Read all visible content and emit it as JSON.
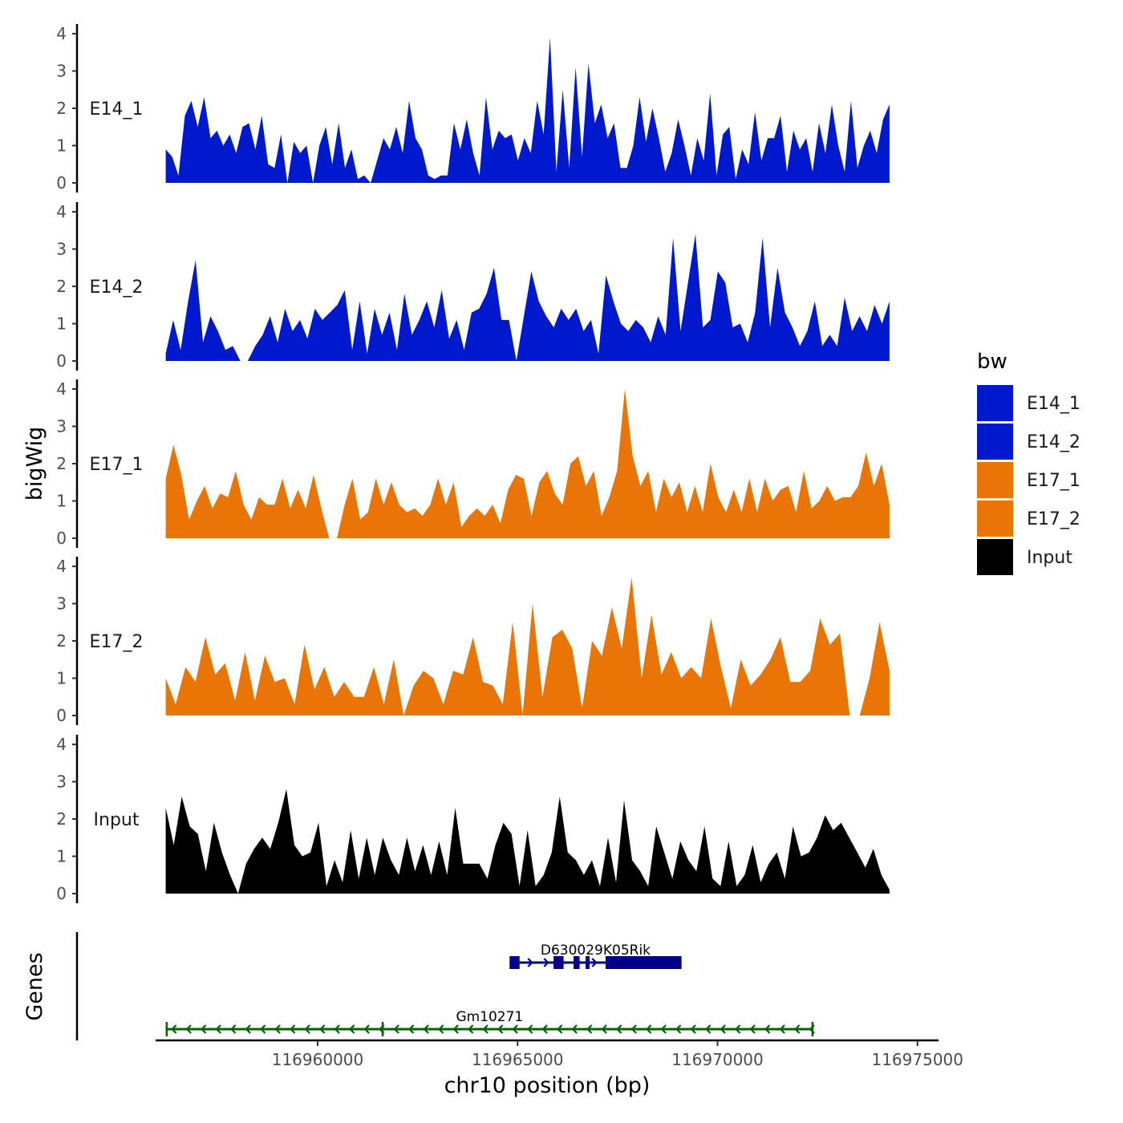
{
  "chart_data": {
    "type": "area",
    "ylabel": "bigWig",
    "xlabel": "chr10 position (bp)",
    "ylim": [
      0,
      4
    ],
    "yticks": [
      "0",
      "1",
      "2",
      "3",
      "4"
    ],
    "xlim": [
      116955300,
      116975200
    ],
    "xticks": [
      {
        "value": 116960000,
        "label": "116960000"
      },
      {
        "value": 116965000,
        "label": "116965000"
      },
      {
        "value": 116970000,
        "label": "116970000"
      },
      {
        "value": 116975000,
        "label": "116975000"
      }
    ],
    "genes_label": "Genes",
    "legend": {
      "title": "bw",
      "items": [
        {
          "label": "E14_1",
          "color": "#0019cc"
        },
        {
          "label": "E14_2",
          "color": "#0019cc"
        },
        {
          "label": "E17_1",
          "color": "#e87506"
        },
        {
          "label": "E17_2",
          "color": "#e87506"
        },
        {
          "label": "Input",
          "color": "#000000"
        }
      ]
    },
    "series": [
      {
        "name": "E14_1",
        "color": "#0019cc",
        "x_start": 116956200,
        "x_end": 116974300,
        "values": [
          0.9,
          0.7,
          0.2,
          1.8,
          2.2,
          1.5,
          2.3,
          1.2,
          1.4,
          1.0,
          1.3,
          0.8,
          1.5,
          1.6,
          0.9,
          1.8,
          0.5,
          0.4,
          1.3,
          0.0,
          1.1,
          0.8,
          1.0,
          0.0,
          1.0,
          1.5,
          0.5,
          1.6,
          0.4,
          0.9,
          0.1,
          0.2,
          0.0,
          0.6,
          1.2,
          0.9,
          1.5,
          0.8,
          2.2,
          1.2,
          0.9,
          0.2,
          0.1,
          0.2,
          0.2,
          1.6,
          0.9,
          1.7,
          0.8,
          0.2,
          2.3,
          0.9,
          1.4,
          1.2,
          1.3,
          0.6,
          1.2,
          0.8,
          2.2,
          1.3,
          3.9,
          0.3,
          2.5,
          0.4,
          3.1,
          0.7,
          3.2,
          1.6,
          2.1,
          1.2,
          1.6,
          0.4,
          0.4,
          1.0,
          2.3,
          1.1,
          2.0,
          1.2,
          0.3,
          0.8,
          1.7,
          1.0,
          0.2,
          1.2,
          0.6,
          2.4,
          0.2,
          1.3,
          1.5,
          0.1,
          0.9,
          0.5,
          1.9,
          0.6,
          1.2,
          1.2,
          1.8,
          0.3,
          1.4,
          0.9,
          1.2,
          0.3,
          1.6,
          0.8,
          2.1,
          1.0,
          0.3,
          2.2,
          0.4,
          1.0,
          1.4,
          0.8,
          1.7,
          2.1
        ]
      },
      {
        "name": "E14_2",
        "color": "#0019cc",
        "x_start": 116956200,
        "x_end": 116974300,
        "values": [
          0.2,
          1.1,
          0.3,
          1.6,
          2.7,
          0.5,
          1.2,
          0.8,
          0.3,
          0.4,
          0.0,
          0.0,
          0.4,
          0.7,
          1.2,
          0.5,
          1.4,
          0.8,
          1.1,
          0.6,
          1.4,
          1.1,
          1.3,
          1.5,
          1.9,
          0.3,
          1.6,
          0.2,
          1.4,
          0.7,
          1.3,
          0.3,
          1.8,
          0.7,
          1.1,
          1.6,
          0.9,
          1.9,
          0.6,
          1.1,
          0.3,
          1.3,
          1.4,
          1.8,
          2.5,
          1.1,
          1.1,
          0.0,
          1.2,
          2.4,
          1.6,
          1.2,
          0.9,
          1.4,
          1.1,
          1.4,
          0.8,
          1.1,
          0.2,
          2.3,
          1.6,
          1.0,
          0.8,
          1.1,
          0.9,
          0.5,
          1.2,
          0.7,
          3.3,
          0.8,
          2.1,
          3.4,
          0.9,
          1.1,
          2.4,
          2.1,
          0.9,
          1.0,
          0.5,
          1.3,
          3.3,
          0.9,
          2.5,
          1.3,
          0.9,
          0.4,
          0.8,
          1.6,
          0.4,
          0.7,
          0.4,
          1.7,
          0.8,
          1.2,
          0.8,
          1.5,
          1.0,
          1.6
        ]
      },
      {
        "name": "E17_1",
        "color": "#e87506",
        "x_start": 116956200,
        "x_end": 116974300,
        "values": [
          1.6,
          2.5,
          1.7,
          0.5,
          1.0,
          1.4,
          0.8,
          1.2,
          1.1,
          1.8,
          0.9,
          0.5,
          1.1,
          0.9,
          0.9,
          1.6,
          0.8,
          1.3,
          0.8,
          1.7,
          0.8,
          0.0,
          0.0,
          0.9,
          1.6,
          0.5,
          0.7,
          1.6,
          0.9,
          1.5,
          0.9,
          0.7,
          0.8,
          0.6,
          0.9,
          1.6,
          0.9,
          1.5,
          0.3,
          0.6,
          0.8,
          0.6,
          0.9,
          0.4,
          1.3,
          1.7,
          1.6,
          0.6,
          1.5,
          1.8,
          1.2,
          0.9,
          2.0,
          2.2,
          1.4,
          1.8,
          0.6,
          1.1,
          1.8,
          4.0,
          2.2,
          1.4,
          1.8,
          0.7,
          1.6,
          1.1,
          1.5,
          0.7,
          1.4,
          0.7,
          2.0,
          1.1,
          0.7,
          1.3,
          0.7,
          1.6,
          0.7,
          1.6,
          1.0,
          1.3,
          1.4,
          0.7,
          1.8,
          0.8,
          1.0,
          1.4,
          1.0,
          1.1,
          1.1,
          1.4,
          2.3,
          1.4,
          2.0,
          0.9
        ]
      },
      {
        "name": "E17_2",
        "color": "#e87506",
        "x_start": 116956200,
        "x_end": 116974300,
        "values": [
          1.0,
          0.3,
          1.3,
          0.9,
          2.1,
          1.1,
          1.4,
          0.4,
          1.7,
          0.4,
          1.6,
          0.9,
          1.0,
          0.3,
          1.9,
          0.7,
          1.3,
          0.5,
          0.9,
          0.5,
          0.5,
          1.3,
          0.3,
          1.5,
          0.0,
          0.8,
          1.2,
          1.0,
          0.3,
          1.2,
          1.1,
          2.1,
          0.9,
          0.8,
          0.3,
          2.5,
          0.0,
          3.0,
          0.5,
          2.1,
          2.3,
          1.8,
          0.2,
          2.0,
          1.6,
          2.9,
          1.8,
          3.7,
          1.0,
          2.7,
          1.1,
          1.7,
          1.0,
          1.3,
          1.0,
          2.6,
          1.3,
          0.2,
          1.5,
          0.8,
          1.1,
          1.5,
          2.1,
          0.9,
          0.9,
          1.2,
          2.6,
          1.9,
          2.2,
          0.0,
          0.0,
          1.0,
          2.5,
          1.2
        ]
      },
      {
        "name": "Input",
        "color": "#000000",
        "x_start": 116956200,
        "x_end": 116974300,
        "values": [
          2.3,
          1.3,
          2.6,
          1.8,
          1.6,
          0.6,
          1.9,
          1.1,
          0.5,
          0.0,
          0.8,
          1.2,
          1.5,
          1.2,
          1.9,
          2.8,
          1.3,
          1.0,
          1.1,
          1.9,
          0.2,
          0.9,
          0.3,
          1.7,
          0.4,
          1.5,
          0.5,
          1.5,
          0.9,
          0.5,
          1.5,
          0.6,
          1.3,
          0.5,
          1.4,
          0.5,
          2.3,
          0.8,
          0.8,
          0.8,
          0.4,
          1.3,
          1.9,
          1.6,
          0.2,
          1.7,
          0.2,
          0.5,
          1.1,
          2.6,
          1.1,
          0.9,
          0.5,
          0.9,
          0.2,
          1.5,
          0.3,
          2.5,
          0.9,
          0.6,
          0.2,
          1.8,
          1.1,
          0.4,
          1.4,
          0.9,
          0.6,
          1.8,
          0.4,
          0.2,
          1.4,
          0.2,
          0.5,
          1.3,
          0.3,
          0.8,
          1.1,
          0.4,
          1.8,
          1.0,
          1.1,
          1.5,
          2.1,
          1.7,
          1.9,
          1.5,
          1.1,
          0.7,
          1.2,
          0.5,
          0.1
        ]
      }
    ],
    "genes": [
      {
        "name": "D630029K05Rik",
        "strand": "+",
        "color": "#00008b",
        "start": 116964800,
        "end": 116969100,
        "exons": [
          [
            116964800,
            116965050
          ],
          [
            116965900,
            116966150
          ],
          [
            116966400,
            116966550
          ],
          [
            116966700,
            116966800
          ],
          [
            116967200,
            116969100
          ]
        ]
      },
      {
        "name": "Gm10271",
        "strand": "-",
        "color": "#006400",
        "start": 116956200,
        "end": 116972400,
        "exons": [
          [
            116956200,
            116956250
          ],
          [
            116961600,
            116961650
          ],
          [
            116972350,
            116972400
          ]
        ]
      }
    ]
  }
}
